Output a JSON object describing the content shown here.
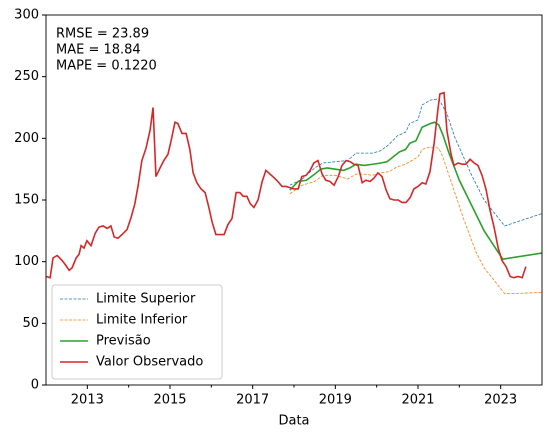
{
  "chart_data": {
    "type": "line",
    "xlabel": "Data",
    "annotations": [
      "RMSE = 23.89",
      "MAE = 18.84",
      "MAPE = 0.1220"
    ],
    "xlim": [
      2012,
      2024
    ],
    "ylim": [
      0,
      300
    ],
    "xticks": [
      2013,
      2015,
      2017,
      2019,
      2021,
      2023
    ],
    "xminor_ticks": [
      2014,
      2016,
      2018,
      2020,
      2022
    ],
    "yticks": [
      0,
      50,
      100,
      150,
      200,
      250,
      300
    ],
    "legend": "lower left",
    "series": [
      {
        "name": "Limite Superior",
        "color": "#1f77b4",
        "style": "dashed",
        "x": [
          2017.9,
          2018.2,
          2018.5,
          2018.7,
          2019.0,
          2019.3,
          2019.5,
          2019.7,
          2019.9,
          2020.1,
          2020.3,
          2020.5,
          2020.7,
          2020.8,
          2021.0,
          2021.1,
          2021.3,
          2021.5,
          2021.7,
          2021.9,
          2022.3,
          2022.6,
          2023.0,
          2023.1,
          2024.0
        ],
        "values": [
          162,
          167,
          176,
          180,
          181,
          182,
          188,
          188,
          188,
          190,
          195,
          202,
          205,
          212,
          215,
          227,
          231,
          232,
          220,
          200,
          170,
          150,
          133,
          129,
          139
        ]
      },
      {
        "name": "Limite Inferior",
        "color": "#ff7f0e",
        "style": "dashed",
        "x": [
          2017.9,
          2018.2,
          2018.5,
          2018.7,
          2019.0,
          2019.3,
          2019.5,
          2019.7,
          2019.9,
          2020.1,
          2020.3,
          2020.5,
          2020.7,
          2020.8,
          2021.0,
          2021.1,
          2021.3,
          2021.5,
          2021.6,
          2021.8,
          2022.1,
          2022.4,
          2022.6,
          2023.1,
          2024.0
        ],
        "values": [
          155,
          162,
          165,
          170,
          170,
          167,
          171,
          171,
          170,
          172,
          173,
          177,
          179,
          181,
          185,
          191,
          193,
          192,
          185,
          165,
          135,
          108,
          95,
          74,
          75
        ]
      },
      {
        "name": "Previsão",
        "color": "#2ca02c",
        "style": "solid",
        "x": [
          2017.9,
          2018.1,
          2018.3,
          2018.5,
          2018.65,
          2018.8,
          2019.0,
          2019.2,
          2019.35,
          2019.5,
          2019.7,
          2019.9,
          2020.1,
          2020.25,
          2020.4,
          2020.55,
          2020.7,
          2020.8,
          2020.95,
          2021.1,
          2021.3,
          2021.4,
          2021.5,
          2021.6,
          2021.75,
          2022.0,
          2022.6,
          2023.05,
          2024.0
        ],
        "values": [
          158,
          165,
          166,
          171,
          175,
          176,
          175,
          174,
          176,
          179,
          178,
          179,
          180,
          181,
          185,
          189,
          191,
          196,
          198,
          209,
          212,
          213,
          211,
          203,
          188,
          166,
          125,
          102,
          107
        ]
      },
      {
        "name": "Valor Observado",
        "color": "#d62728",
        "style": "solid",
        "x": [
          2012.0,
          2012.1,
          2012.17,
          2012.27,
          2012.39,
          2012.48,
          2012.56,
          2012.63,
          2012.73,
          2012.8,
          2012.85,
          2012.92,
          2012.99,
          2013.09,
          2013.19,
          2013.28,
          2013.38,
          2013.48,
          2013.57,
          2013.65,
          2013.74,
          2013.84,
          2013.96,
          2014.06,
          2014.15,
          2014.23,
          2014.32,
          2014.42,
          2014.52,
          2014.59,
          2014.66,
          2014.76,
          2014.85,
          2014.95,
          2015.02,
          2015.12,
          2015.19,
          2015.29,
          2015.39,
          2015.48,
          2015.56,
          2015.65,
          2015.75,
          2015.85,
          2015.94,
          2016.02,
          2016.11,
          2016.21,
          2016.31,
          2016.4,
          2016.5,
          2016.6,
          2016.69,
          2016.77,
          2016.86,
          2016.94,
          2017.03,
          2017.13,
          2017.23,
          2017.32,
          2017.42,
          2017.52,
          2017.61,
          2017.71,
          2017.81,
          2017.9,
          2018.0,
          2018.1,
          2018.19,
          2018.29,
          2018.39,
          2018.48,
          2018.58,
          2018.68,
          2018.77,
          2018.87,
          2018.97,
          2019.07,
          2019.16,
          2019.26,
          2019.36,
          2019.45,
          2019.55,
          2019.65,
          2019.74,
          2019.84,
          2019.94,
          2020.03,
          2020.13,
          2020.23,
          2020.32,
          2020.42,
          2020.52,
          2020.61,
          2020.71,
          2020.81,
          2020.9,
          2021.0,
          2021.1,
          2021.19,
          2021.29,
          2021.39,
          2021.48,
          2021.53,
          2021.63,
          2021.7,
          2021.8,
          2021.87,
          2021.97,
          2022.07,
          2022.16,
          2022.26,
          2022.36,
          2022.45,
          2022.55,
          2022.65,
          2022.74,
          2022.84,
          2022.94,
          2023.03,
          2023.13,
          2023.23,
          2023.32,
          2023.42,
          2023.52,
          2023.61
        ],
        "values": [
          88,
          87,
          103,
          105,
          101,
          97,
          93,
          95,
          103,
          106,
          113,
          111,
          117,
          113,
          123,
          128,
          129,
          127,
          129,
          120,
          119,
          122,
          126,
          136,
          147,
          162,
          182,
          192,
          207,
          225,
          169,
          176,
          182,
          187,
          197,
          213,
          212,
          204,
          204,
          191,
          172,
          164,
          159,
          156,
          144,
          132,
          122,
          122,
          122,
          130,
          135,
          156,
          156,
          153,
          153,
          147,
          144,
          150,
          165,
          174,
          171,
          168,
          165,
          161,
          161,
          160,
          159,
          159,
          169,
          170,
          174,
          180,
          182,
          171,
          166,
          165,
          162,
          169,
          178,
          182,
          181,
          179,
          178,
          164,
          166,
          165,
          168,
          172,
          169,
          158,
          151,
          150,
          150,
          148,
          148,
          152,
          159,
          161,
          164,
          163,
          173,
          196,
          223,
          236,
          237,
          206,
          187,
          178,
          180,
          179,
          179,
          183,
          180,
          178,
          170,
          158,
          142,
          128,
          111,
          101,
          96,
          88,
          87,
          88,
          87,
          96
        ]
      }
    ]
  }
}
